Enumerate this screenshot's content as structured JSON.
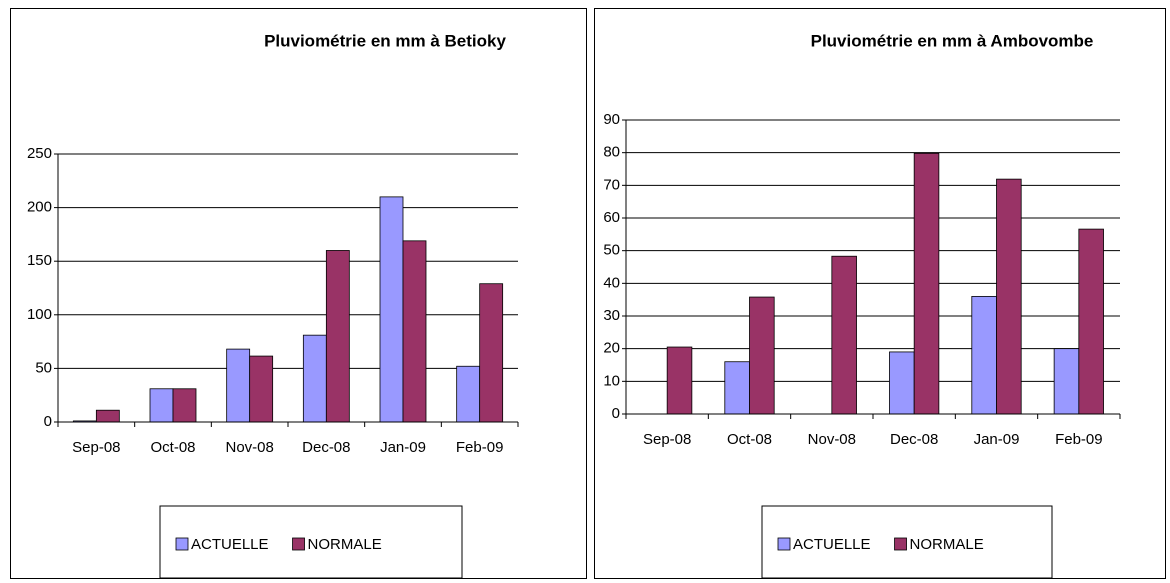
{
  "chart_data": [
    {
      "type": "bar",
      "title": "Pluviométrie  en mm à Betioky",
      "categories": [
        "Sep-08",
        "Oct-08",
        "Nov-08",
        "Dec-08",
        "Jan-09",
        "Feb-09"
      ],
      "series": [
        {
          "name": "ACTUELLE",
          "color": "#9999ff",
          "values": [
            1,
            31,
            68,
            81,
            210,
            52
          ]
        },
        {
          "name": "NORMALE",
          "color": "#993366",
          "values": [
            11,
            31,
            61.5,
            160,
            169,
            129
          ]
        }
      ],
      "ylim": [
        0,
        250
      ],
      "yticks": [
        0,
        50,
        100,
        150,
        200,
        250
      ],
      "grid": true,
      "legend": "bottom"
    },
    {
      "type": "bar",
      "title": "Pluviométrie en mm à Ambovombe",
      "categories": [
        "Sep-08",
        "Oct-08",
        "Nov-08",
        "Dec-08",
        "Jan-09",
        "Feb-09"
      ],
      "series": [
        {
          "name": "ACTUELLE",
          "color": "#9999ff",
          "values": [
            0,
            16,
            0,
            19,
            36,
            20
          ]
        },
        {
          "name": "NORMALE",
          "color": "#993366",
          "values": [
            20.5,
            35.8,
            48.3,
            79.8,
            71.9,
            56.6
          ]
        }
      ],
      "ylim": [
        0,
        90
      ],
      "yticks": [
        0,
        10,
        20,
        30,
        40,
        50,
        60,
        70,
        80,
        90
      ],
      "grid": true,
      "legend": "bottom"
    }
  ]
}
